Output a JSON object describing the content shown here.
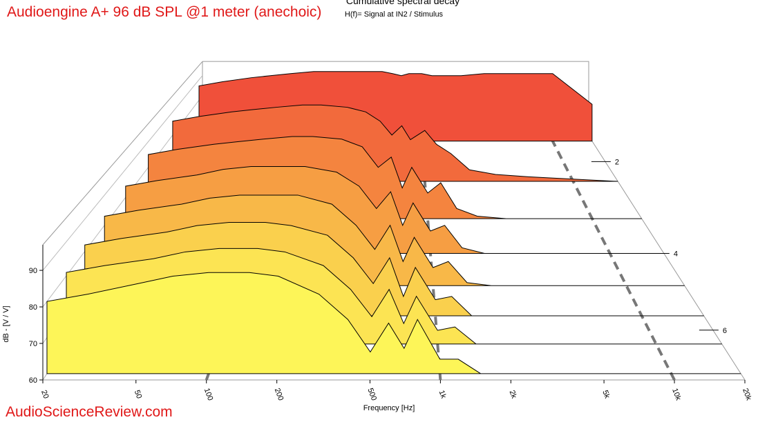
{
  "chart_data": {
    "type": "waterfall",
    "title": "Cumulative spectral decay",
    "subtitle": "H(f)= Signal at IN2 / Stimulus",
    "annotation": "Audioengine A+ 96 dB SPL @1 meter (anechoic)",
    "watermark": "AudioScienceReview.com",
    "x_label": "Frequency [Hz]",
    "y_label": "dB - [V / V]",
    "x_scale": "log",
    "xlim": [
      20,
      20000
    ],
    "xticks": [
      20,
      50,
      100,
      200,
      500,
      {
        "value": 1000,
        "label": "1k"
      },
      {
        "value": 2000,
        "label": "2k"
      },
      {
        "value": 5000,
        "label": "5k"
      },
      {
        "value": 10000,
        "label": "10k"
      },
      {
        "value": 20000,
        "label": "20k"
      }
    ],
    "ylim": [
      60,
      97
    ],
    "yticks": [
      60,
      70,
      80,
      90
    ],
    "zlim": [
      1.5,
      7.5
    ],
    "zticks": [
      2,
      4,
      6
    ],
    "x": [
      20,
      30,
      50,
      70,
      100,
      150,
      200,
      300,
      400,
      500,
      600,
      700,
      800,
      1000,
      1200,
      1500,
      2000,
      3000,
      5000,
      10000,
      20000
    ],
    "series": [
      {
        "z": 1.6,
        "color": "#f0503a",
        "values": [
          87,
          89,
          91,
          92,
          93,
          94,
          94,
          94,
          94,
          94,
          93,
          92,
          93,
          93,
          92,
          92,
          92,
          93,
          93,
          93,
          78
        ]
      },
      {
        "z": 2.4,
        "color": "#f26a3c",
        "values": [
          86,
          88,
          90,
          91,
          92,
          93,
          93,
          92,
          90,
          86,
          80,
          84,
          78,
          82,
          76,
          72,
          65,
          63,
          62,
          61,
          60
        ]
      },
      {
        "z": 3.2,
        "color": "#f4843f",
        "values": [
          85,
          87,
          89,
          90,
          91,
          92,
          92,
          91,
          88,
          80,
          84,
          72,
          80,
          70,
          74,
          64,
          61,
          60,
          60,
          60,
          60
        ]
      },
      {
        "z": 4.0,
        "color": "#f69e43",
        "values": [
          84,
          86,
          88,
          90,
          91,
          91,
          91,
          89,
          84,
          76,
          82,
          70,
          78,
          68,
          70,
          62,
          60,
          60,
          60,
          60,
          60
        ]
      },
      {
        "z": 4.8,
        "color": "#f8b848",
        "values": [
          83,
          85,
          87,
          89,
          90,
          90,
          90,
          87,
          80,
          72,
          80,
          68,
          76,
          66,
          68,
          61,
          60,
          60,
          60,
          60,
          60
        ]
      },
      {
        "z": 5.6,
        "color": "#fad04d",
        "values": [
          82,
          84,
          86,
          88,
          89,
          89,
          88,
          85,
          78,
          70,
          78,
          66,
          75,
          65,
          66,
          60,
          60,
          60,
          60,
          60,
          60
        ]
      },
      {
        "z": 6.4,
        "color": "#fce453",
        "values": [
          81,
          83,
          85,
          87,
          88,
          88,
          87,
          83,
          76,
          68,
          76,
          66,
          74,
          64,
          65,
          60,
          60,
          60,
          60,
          60,
          60
        ]
      },
      {
        "z": 7.3,
        "color": "#fdf558",
        "values": [
          80,
          82,
          85,
          87,
          88,
          88,
          87,
          82,
          75,
          66,
          74,
          67,
          75,
          64,
          64,
          60,
          60,
          60,
          60,
          60,
          60
        ]
      }
    ]
  }
}
